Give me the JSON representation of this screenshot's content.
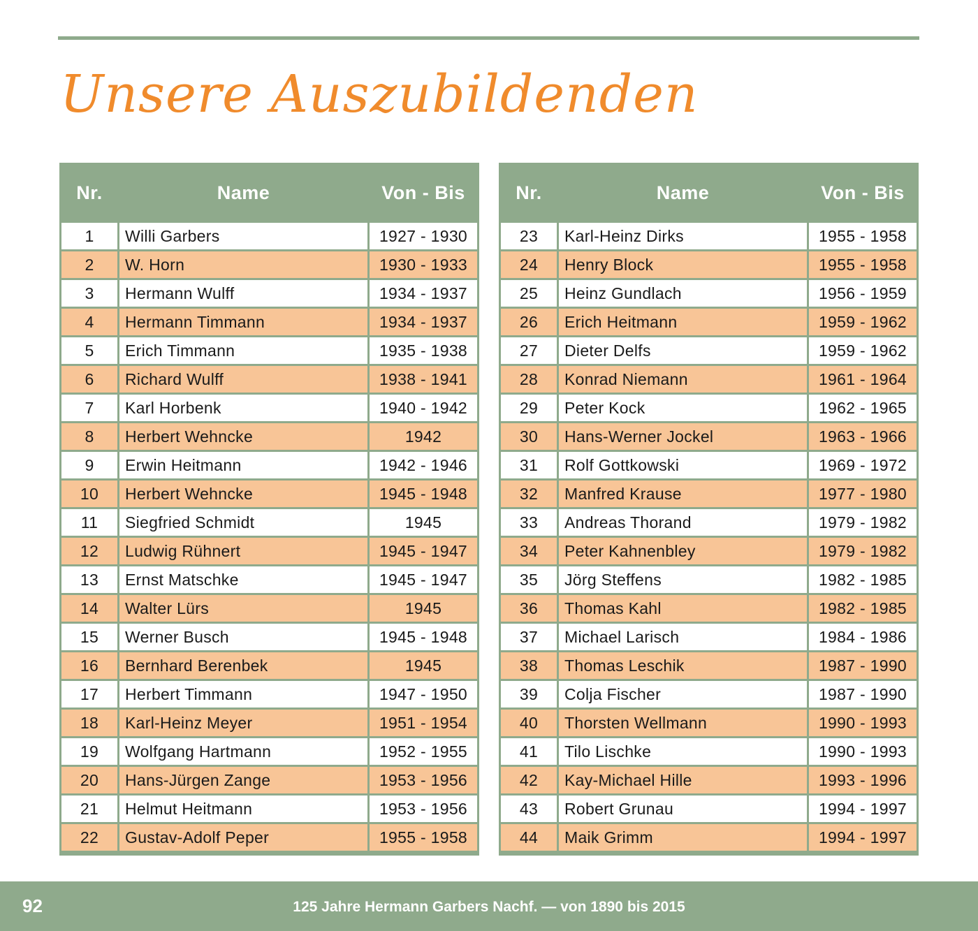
{
  "title": "Unsere Auszubildenden",
  "headers": {
    "nr": "Nr.",
    "name": "Name",
    "period": "Von - Bis"
  },
  "left_table": [
    {
      "nr": "1",
      "name": "Willi Garbers",
      "period": "1927 - 1930"
    },
    {
      "nr": "2",
      "name": "W. Horn",
      "period": "1930 - 1933"
    },
    {
      "nr": "3",
      "name": "Hermann Wulff",
      "period": "1934 - 1937"
    },
    {
      "nr": "4",
      "name": "Hermann Timmann",
      "period": "1934 - 1937"
    },
    {
      "nr": "5",
      "name": "Erich Timmann",
      "period": "1935 - 1938"
    },
    {
      "nr": "6",
      "name": "Richard Wulff",
      "period": "1938 - 1941"
    },
    {
      "nr": "7",
      "name": "Karl Horbenk",
      "period": "1940 - 1942"
    },
    {
      "nr": "8",
      "name": "Herbert Wehncke",
      "period": "1942"
    },
    {
      "nr": "9",
      "name": "Erwin Heitmann",
      "period": "1942 - 1946"
    },
    {
      "nr": "10",
      "name": "Herbert Wehncke",
      "period": "1945 - 1948"
    },
    {
      "nr": "11",
      "name": "Siegfried Schmidt",
      "period": "1945"
    },
    {
      "nr": "12",
      "name": "Ludwig Rühnert",
      "period": "1945 - 1947"
    },
    {
      "nr": "13",
      "name": "Ernst Matschke",
      "period": "1945 - 1947"
    },
    {
      "nr": "14",
      "name": "Walter Lürs",
      "period": "1945"
    },
    {
      "nr": "15",
      "name": "Werner Busch",
      "period": "1945 - 1948"
    },
    {
      "nr": "16",
      "name": "Bernhard Berenbek",
      "period": "1945"
    },
    {
      "nr": "17",
      "name": "Herbert Timmann",
      "period": "1947 - 1950"
    },
    {
      "nr": "18",
      "name": "Karl-Heinz Meyer",
      "period": "1951 - 1954"
    },
    {
      "nr": "19",
      "name": "Wolfgang Hartmann",
      "period": "1952 - 1955"
    },
    {
      "nr": "20",
      "name": "Hans-Jürgen Zange",
      "period": "1953 - 1956"
    },
    {
      "nr": "21",
      "name": "Helmut Heitmann",
      "period": "1953 - 1956"
    },
    {
      "nr": "22",
      "name": "Gustav-Adolf Peper",
      "period": "1955 - 1958"
    }
  ],
  "right_table": [
    {
      "nr": "23",
      "name": "Karl-Heinz Dirks",
      "period": "1955 - 1958"
    },
    {
      "nr": "24",
      "name": "Henry Block",
      "period": "1955 - 1958"
    },
    {
      "nr": "25",
      "name": "Heinz Gundlach",
      "period": "1956 - 1959"
    },
    {
      "nr": "26",
      "name": "Erich Heitmann",
      "period": "1959 - 1962"
    },
    {
      "nr": "27",
      "name": "Dieter Delfs",
      "period": "1959 - 1962"
    },
    {
      "nr": "28",
      "name": "Konrad Niemann",
      "period": "1961 - 1964"
    },
    {
      "nr": "29",
      "name": "Peter Kock",
      "period": "1962 - 1965"
    },
    {
      "nr": "30",
      "name": "Hans-Werner Jockel",
      "period": "1963 - 1966"
    },
    {
      "nr": "31",
      "name": "Rolf Gottkowski",
      "period": "1969 - 1972"
    },
    {
      "nr": "32",
      "name": "Manfred Krause",
      "period": "1977 - 1980"
    },
    {
      "nr": "33",
      "name": "Andreas Thorand",
      "period": "1979 - 1982"
    },
    {
      "nr": "34",
      "name": "Peter Kahnenbley",
      "period": "1979 - 1982"
    },
    {
      "nr": "35",
      "name": "Jörg Steffens",
      "period": "1982 - 1985"
    },
    {
      "nr": "36",
      "name": "Thomas Kahl",
      "period": "1982 - 1985"
    },
    {
      "nr": "37",
      "name": "Michael Larisch",
      "period": "1984 - 1986"
    },
    {
      "nr": "38",
      "name": "Thomas Leschik",
      "period": "1987 - 1990"
    },
    {
      "nr": "39",
      "name": "Colja Fischer",
      "period": "1987 - 1990"
    },
    {
      "nr": "40",
      "name": "Thorsten Wellmann",
      "period": "1990 - 1993"
    },
    {
      "nr": "41",
      "name": "Tilo Lischke",
      "period": "1990 - 1993"
    },
    {
      "nr": "42",
      "name": "Kay-Michael Hille",
      "period": "1993 - 1996"
    },
    {
      "nr": "43",
      "name": "Robert Grunau",
      "period": "1994 - 1997"
    },
    {
      "nr": "44",
      "name": "Maik Grimm",
      "period": "1994 - 1997"
    }
  ],
  "footer": {
    "page_number": "92",
    "text": "125 Jahre Hermann Garbers Nachf. — von 1890 bis 2015"
  },
  "colors": {
    "accent_green": "#8faa8c",
    "title_orange": "#f08b2c",
    "row_highlight": "#f8c597"
  }
}
